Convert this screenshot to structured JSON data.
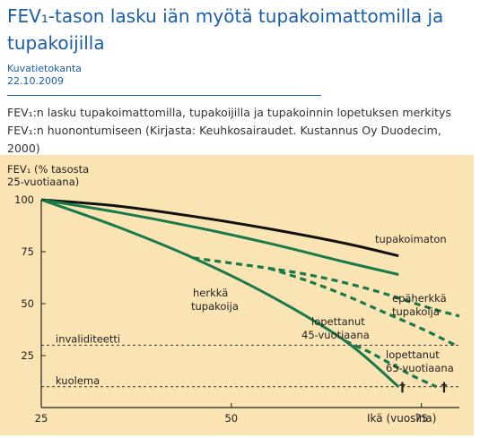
{
  "article": {
    "title": "FEV₁-tason lasku iän myötä tupakoimattomilla ja tupakoijilla",
    "source": "Kuvatietokanta",
    "date": "22.10.2009",
    "caption": "FEV₁:n lasku tupakoimattomilla, tupakoijilla ja tupakoinnin lopetuksen merkitys FEV₁:n huonontumiseen (Kirjasta: Keuhkosairaudet. Kustannus Oy Duodecim, 2000)"
  },
  "colors": {
    "title": "#1b5ea8",
    "figure_background": "#fbe4b4",
    "curve_green": "#19794a",
    "curve_black": "#111111"
  },
  "chart_data": {
    "type": "line",
    "ylabel": "FEV₁ (% tasosta 25-vuotiaana)",
    "xlabel": "Ikä (vuosina)",
    "xlim": [
      25,
      80
    ],
    "ylim": [
      0,
      100
    ],
    "x_ticks": [
      "25",
      "50",
      "75"
    ],
    "y_ticks": [
      "100",
      "75",
      "50",
      "25",
      "0"
    ],
    "grid": false,
    "reference_lines": [
      {
        "label": "invaliditeetti",
        "y": 30
      },
      {
        "label": "kuolema",
        "y": 10
      }
    ],
    "series": [
      {
        "name": "tupakoimaton",
        "style": "solid",
        "color": "#111111",
        "x": [
          25,
          35,
          45,
          55,
          65,
          72
        ],
        "y": [
          100,
          97,
          92,
          86,
          79,
          73
        ]
      },
      {
        "name": "epäherkkä tupakoija",
        "style": "solid",
        "color": "#19794a",
        "x": [
          25,
          35,
          45,
          55,
          65,
          72
        ],
        "y": [
          100,
          94,
          87,
          79,
          70,
          64
        ]
      },
      {
        "name": "herkkä tupakoija",
        "style": "solid",
        "color": "#19794a",
        "x": [
          25,
          35,
          45,
          55,
          65,
          72
        ],
        "y": [
          100,
          87,
          72,
          54,
          32,
          10
        ]
      },
      {
        "name": "",
        "style": "dashed",
        "color": "#19794a",
        "x": [
          45,
          50,
          55,
          60,
          65,
          70,
          76,
          80
        ],
        "y": [
          72,
          69.5,
          67,
          64,
          60,
          55,
          48,
          44
        ]
      },
      {
        "name": "lopettanut 45-vuotiaana",
        "style": "dashed",
        "color": "#19794a",
        "x": [
          55,
          60,
          65,
          70,
          75,
          79.5
        ],
        "y": [
          67,
          61,
          54,
          46,
          38,
          30
        ]
      },
      {
        "name": "lopettanut 65-vuotiaana",
        "style": "dashed",
        "color": "#19794a",
        "x": [
          65,
          68,
          71,
          74,
          77
        ],
        "y": [
          32,
          27,
          21,
          15,
          10
        ]
      }
    ],
    "markers": [
      {
        "label": "†",
        "x": 72.5,
        "y": 10
      },
      {
        "label": "†",
        "x": 78,
        "y": 10
      }
    ],
    "annotations": {
      "tupakoimaton": "tupakoimaton",
      "epaherkka_1": "epäherkkä",
      "epaherkka_2": "tupakoija",
      "herkka_1": "herkkä",
      "herkka_2": "tupakoija",
      "lop45_1": "lopettanut",
      "lop45_2": "45-vuotiaana",
      "lop65_1": "lopettanut",
      "lop65_2": "65-vuotiaana",
      "ylabel_1": "FEV₁ (% tasosta",
      "ylabel_2": "25-vuotiaana)"
    }
  }
}
